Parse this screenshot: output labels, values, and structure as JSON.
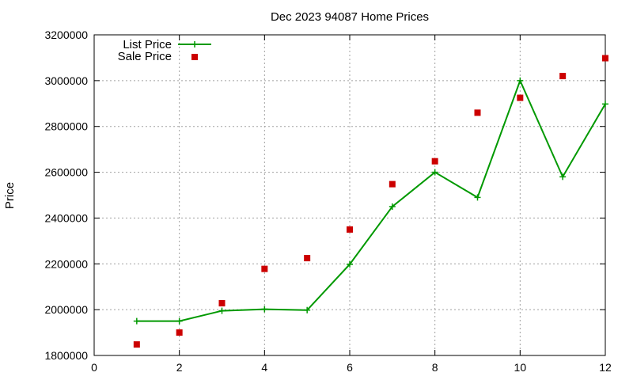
{
  "chart_data": {
    "type": "line",
    "title": "Dec 2023 94087 Home Prices",
    "xlabel": "",
    "ylabel": "Price",
    "xlim": [
      0,
      12
    ],
    "ylim": [
      1800000,
      3200000
    ],
    "xticks": [
      0,
      2,
      4,
      6,
      8,
      10,
      12
    ],
    "yticks": [
      1800000,
      2000000,
      2200000,
      2400000,
      2600000,
      2800000,
      3000000,
      3200000
    ],
    "xtick_labels": [
      "0",
      "2",
      "4",
      "6",
      "8",
      "10",
      "12"
    ],
    "ytick_labels": [
      "1800000",
      "2000000",
      "2200000",
      "2400000",
      "2600000",
      "2800000",
      "3000000",
      "3200000"
    ],
    "grid": true,
    "legend_position": "top-left",
    "series": [
      {
        "name": "List Price",
        "style": "line-with-plus-markers",
        "color": "#009900",
        "x": [
          1,
          2,
          3,
          4,
          5,
          6,
          7,
          8,
          9,
          10,
          11,
          12
        ],
        "y": [
          1950000,
          1950000,
          1995000,
          2002000,
          1998000,
          2198000,
          2450000,
          2600000,
          2490000,
          3000000,
          2580000,
          2898000
        ]
      },
      {
        "name": "Sale Price",
        "style": "square-markers",
        "color": "#cc0000",
        "x": [
          1,
          2,
          3,
          4,
          5,
          6,
          7,
          8,
          9,
          10,
          11,
          12
        ],
        "y": [
          1848000,
          1900000,
          2028000,
          2178000,
          2225000,
          2350000,
          2548000,
          2648000,
          2860000,
          2925000,
          3020000,
          3098000
        ]
      }
    ]
  }
}
